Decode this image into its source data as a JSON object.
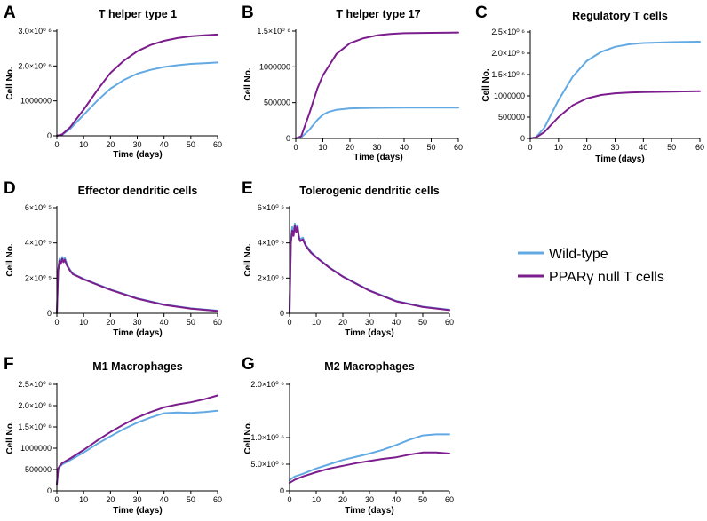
{
  "figure": {
    "legend": {
      "entries": [
        {
          "label": "Wild-type",
          "color": "#63a9e3"
        },
        {
          "label": "PPARγ null T cells",
          "color": "#7b1d8c"
        }
      ]
    }
  },
  "chart_data": [
    {
      "id": "A",
      "letter": "A",
      "type": "line",
      "title": "T helper type 1",
      "xlabel": "Time (days)",
      "ylabel": "Cell No.",
      "xlim": [
        0,
        60
      ],
      "ylim": [
        0,
        3000000
      ],
      "xticks": [
        0,
        10,
        20,
        30,
        40,
        50,
        60
      ],
      "yticks": [
        {
          "v": 0,
          "label": "0"
        },
        {
          "v": 1000000,
          "label": "1000000"
        },
        {
          "v": 2000000,
          "label": "2.0×10⁰ ⁶"
        },
        {
          "v": 3000000,
          "label": "3.0×10⁰ ⁶"
        }
      ],
      "series": [
        {
          "name": "Wild-type",
          "color": "#63a9e3",
          "x": [
            0,
            2,
            5,
            10,
            15,
            20,
            25,
            30,
            35,
            40,
            45,
            50,
            55,
            60
          ],
          "y": [
            0,
            30000,
            200000,
            600000,
            1000000,
            1350000,
            1600000,
            1780000,
            1890000,
            1970000,
            2020000,
            2060000,
            2080000,
            2100000
          ]
        },
        {
          "name": "PPARγ null T cells",
          "color": "#7b1d8c",
          "x": [
            0,
            2,
            5,
            10,
            15,
            20,
            25,
            30,
            35,
            40,
            45,
            50,
            55,
            60
          ],
          "y": [
            0,
            40000,
            250000,
            750000,
            1300000,
            1800000,
            2150000,
            2420000,
            2600000,
            2720000,
            2800000,
            2850000,
            2880000,
            2900000
          ]
        }
      ]
    },
    {
      "id": "B",
      "letter": "B",
      "type": "line",
      "title": "T helper type 17",
      "xlabel": "Time (days)",
      "ylabel": "Cell No.",
      "xlim": [
        0,
        60
      ],
      "ylim": [
        0,
        1500000
      ],
      "xticks": [
        0,
        10,
        20,
        30,
        40,
        50,
        60
      ],
      "yticks": [
        {
          "v": 0,
          "label": "0"
        },
        {
          "v": 500000,
          "label": "500000"
        },
        {
          "v": 1000000,
          "label": "1000000"
        },
        {
          "v": 1500000,
          "label": "1.5×10⁰ ⁶"
        }
      ],
      "series": [
        {
          "name": "Wild-type",
          "color": "#63a9e3",
          "x": [
            0,
            2,
            5,
            8,
            10,
            12,
            15,
            20,
            25,
            30,
            40,
            50,
            60
          ],
          "y": [
            0,
            15000,
            120000,
            260000,
            330000,
            370000,
            400000,
            420000,
            425000,
            428000,
            430000,
            430000,
            430000
          ]
        },
        {
          "name": "PPARγ null T cells",
          "color": "#7b1d8c",
          "x": [
            0,
            2,
            5,
            8,
            10,
            15,
            20,
            25,
            30,
            35,
            40,
            50,
            60
          ],
          "y": [
            0,
            30000,
            350000,
            700000,
            880000,
            1180000,
            1330000,
            1400000,
            1440000,
            1460000,
            1470000,
            1475000,
            1480000
          ]
        }
      ]
    },
    {
      "id": "C",
      "letter": "C",
      "type": "line",
      "title": "Regulatory T cells",
      "xlabel": "Time (days)",
      "ylabel": "Cell No.",
      "xlim": [
        0,
        60
      ],
      "ylim": [
        0,
        2500000
      ],
      "xticks": [
        0,
        10,
        20,
        30,
        40,
        50,
        60
      ],
      "yticks": [
        {
          "v": 0,
          "label": "0"
        },
        {
          "v": 500000,
          "label": "500000"
        },
        {
          "v": 1000000,
          "label": "1000000"
        },
        {
          "v": 1500000,
          "label": "1.5×10⁰ ⁶"
        },
        {
          "v": 2000000,
          "label": "2.0×10⁰ ⁶"
        },
        {
          "v": 2500000,
          "label": "2.5×10⁰ ⁶"
        }
      ],
      "series": [
        {
          "name": "Wild-type",
          "color": "#63a9e3",
          "x": [
            0,
            2,
            5,
            10,
            15,
            20,
            25,
            30,
            35,
            40,
            50,
            60
          ],
          "y": [
            0,
            30000,
            250000,
            900000,
            1450000,
            1820000,
            2030000,
            2150000,
            2210000,
            2240000,
            2260000,
            2270000
          ]
        },
        {
          "name": "PPARγ null T cells",
          "color": "#7b1d8c",
          "x": [
            0,
            2,
            5,
            10,
            15,
            20,
            25,
            30,
            35,
            40,
            50,
            60
          ],
          "y": [
            0,
            20000,
            150000,
            500000,
            780000,
            940000,
            1020000,
            1060000,
            1080000,
            1090000,
            1100000,
            1110000
          ]
        }
      ]
    },
    {
      "id": "D",
      "letter": "D",
      "type": "line",
      "title": "Effector dendritic cells",
      "xlabel": "Time (days)",
      "ylabel": "Cell No.",
      "xlim": [
        0,
        60
      ],
      "ylim": [
        0,
        600000
      ],
      "xticks": [
        0,
        10,
        20,
        30,
        40,
        50,
        60
      ],
      "yticks": [
        {
          "v": 0,
          "label": "0"
        },
        {
          "v": 200000,
          "label": "2×10⁰ ⁵"
        },
        {
          "v": 400000,
          "label": "4×10⁰ ⁵"
        },
        {
          "v": 600000,
          "label": "6×10⁰ ⁵"
        }
      ],
      "series": [
        {
          "name": "Wild-type",
          "color": "#63a9e3",
          "x": [
            0,
            0.5,
            1,
            1.5,
            2,
            2.5,
            3,
            3.5,
            4,
            5,
            6,
            8,
            10,
            15,
            20,
            30,
            40,
            50,
            60
          ],
          "y": [
            0,
            250000,
            310000,
            290000,
            320000,
            300000,
            315000,
            290000,
            270000,
            245000,
            225000,
            210000,
            195000,
            165000,
            135000,
            85000,
            50000,
            28000,
            15000
          ]
        },
        {
          "name": "PPARγ null T cells",
          "color": "#7b1d8c",
          "x": [
            0,
            0.5,
            1,
            1.5,
            2,
            2.5,
            3,
            3.5,
            4,
            5,
            6,
            8,
            10,
            15,
            20,
            30,
            40,
            50,
            60
          ],
          "y": [
            0,
            240000,
            300000,
            280000,
            310000,
            290000,
            305000,
            280000,
            265000,
            240000,
            222000,
            208000,
            193000,
            163000,
            133000,
            83000,
            48000,
            26000,
            13000
          ]
        }
      ]
    },
    {
      "id": "E",
      "letter": "E",
      "type": "line",
      "title": "Tolerogenic dendritic cells",
      "xlabel": "Time (days)",
      "ylabel": "Cell No.",
      "xlim": [
        0,
        60
      ],
      "ylim": [
        0,
        600000
      ],
      "xticks": [
        0,
        10,
        20,
        30,
        40,
        50,
        60
      ],
      "yticks": [
        {
          "v": 0,
          "label": "0"
        },
        {
          "v": 200000,
          "label": "2×10⁰ ⁵"
        },
        {
          "v": 400000,
          "label": "4×10⁰ ⁵"
        },
        {
          "v": 600000,
          "label": "6×10⁰ ⁵"
        }
      ],
      "series": [
        {
          "name": "Wild-type",
          "color": "#63a9e3",
          "x": [
            0,
            0.5,
            1,
            1.5,
            2,
            2.5,
            3,
            3.5,
            4,
            5,
            6,
            8,
            10,
            15,
            20,
            30,
            40,
            50,
            60
          ],
          "y": [
            0,
            420000,
            490000,
            460000,
            510000,
            470000,
            500000,
            440000,
            420000,
            430000,
            390000,
            350000,
            320000,
            260000,
            210000,
            130000,
            70000,
            38000,
            20000
          ]
        },
        {
          "name": "PPARγ null T cells",
          "color": "#7b1d8c",
          "x": [
            0,
            0.5,
            1,
            1.5,
            2,
            2.5,
            3,
            3.5,
            4,
            5,
            6,
            8,
            10,
            15,
            20,
            30,
            40,
            50,
            60
          ],
          "y": [
            0,
            400000,
            470000,
            440000,
            500000,
            460000,
            490000,
            430000,
            410000,
            420000,
            385000,
            345000,
            318000,
            258000,
            208000,
            128000,
            68000,
            36000,
            18000
          ]
        }
      ]
    },
    {
      "id": "F",
      "letter": "F",
      "type": "line",
      "title": "M1 Macrophages",
      "xlabel": "Time (days)",
      "ylabel": "Cell No.",
      "xlim": [
        0,
        60
      ],
      "ylim": [
        0,
        2500000
      ],
      "xticks": [
        0,
        10,
        20,
        30,
        40,
        50,
        60
      ],
      "yticks": [
        {
          "v": 0,
          "label": "0"
        },
        {
          "v": 500000,
          "label": "500000"
        },
        {
          "v": 1000000,
          "label": "1000000"
        },
        {
          "v": 1500000,
          "label": "1.5×10⁰ ⁶"
        },
        {
          "v": 2000000,
          "label": "2.0×10⁰ ⁶"
        },
        {
          "v": 2500000,
          "label": "2.5×10⁰ ⁶"
        }
      ],
      "series": [
        {
          "name": "Wild-type",
          "color": "#63a9e3",
          "x": [
            0,
            0.5,
            1,
            2,
            5,
            10,
            15,
            20,
            25,
            30,
            35,
            40,
            45,
            50,
            55,
            60
          ],
          "y": [
            150000,
            500000,
            560000,
            620000,
            720000,
            900000,
            1100000,
            1280000,
            1450000,
            1600000,
            1720000,
            1820000,
            1840000,
            1830000,
            1850000,
            1880000
          ]
        },
        {
          "name": "PPARγ null T cells",
          "color": "#7b1d8c",
          "x": [
            0,
            0.5,
            1,
            2,
            5,
            10,
            15,
            20,
            25,
            30,
            35,
            40,
            45,
            50,
            55,
            60
          ],
          "y": [
            150000,
            520000,
            580000,
            650000,
            760000,
            960000,
            1180000,
            1380000,
            1560000,
            1720000,
            1850000,
            1960000,
            2030000,
            2080000,
            2150000,
            2240000
          ]
        }
      ]
    },
    {
      "id": "G",
      "letter": "G",
      "type": "line",
      "title": "M2 Macrophages",
      "xlabel": "Time (days)",
      "ylabel": "Cell No.",
      "xlim": [
        0,
        60
      ],
      "ylim": [
        0,
        2000000
      ],
      "xticks": [
        0,
        10,
        20,
        30,
        40,
        50,
        60
      ],
      "yticks": [
        {
          "v": 0,
          "label": "0"
        },
        {
          "v": 500000,
          "label": "5.0×10⁰ ⁵"
        },
        {
          "v": 1000000,
          "label": "1.0×10⁰ ⁶"
        },
        {
          "v": 2000000,
          "label": "2.0×10⁰ ⁶"
        }
      ],
      "series": [
        {
          "name": "Wild-type",
          "color": "#63a9e3",
          "x": [
            0,
            1,
            2,
            5,
            10,
            15,
            20,
            25,
            30,
            35,
            40,
            45,
            50,
            55,
            60
          ],
          "y": [
            200000,
            240000,
            270000,
            320000,
            420000,
            500000,
            580000,
            640000,
            700000,
            770000,
            860000,
            960000,
            1040000,
            1060000,
            1060000
          ]
        },
        {
          "name": "PPARγ null T cells",
          "color": "#7b1d8c",
          "x": [
            0,
            1,
            2,
            5,
            10,
            15,
            20,
            25,
            30,
            35,
            40,
            45,
            50,
            55,
            60
          ],
          "y": [
            150000,
            180000,
            210000,
            270000,
            350000,
            420000,
            470000,
            520000,
            560000,
            600000,
            630000,
            680000,
            720000,
            720000,
            700000
          ]
        }
      ]
    }
  ]
}
